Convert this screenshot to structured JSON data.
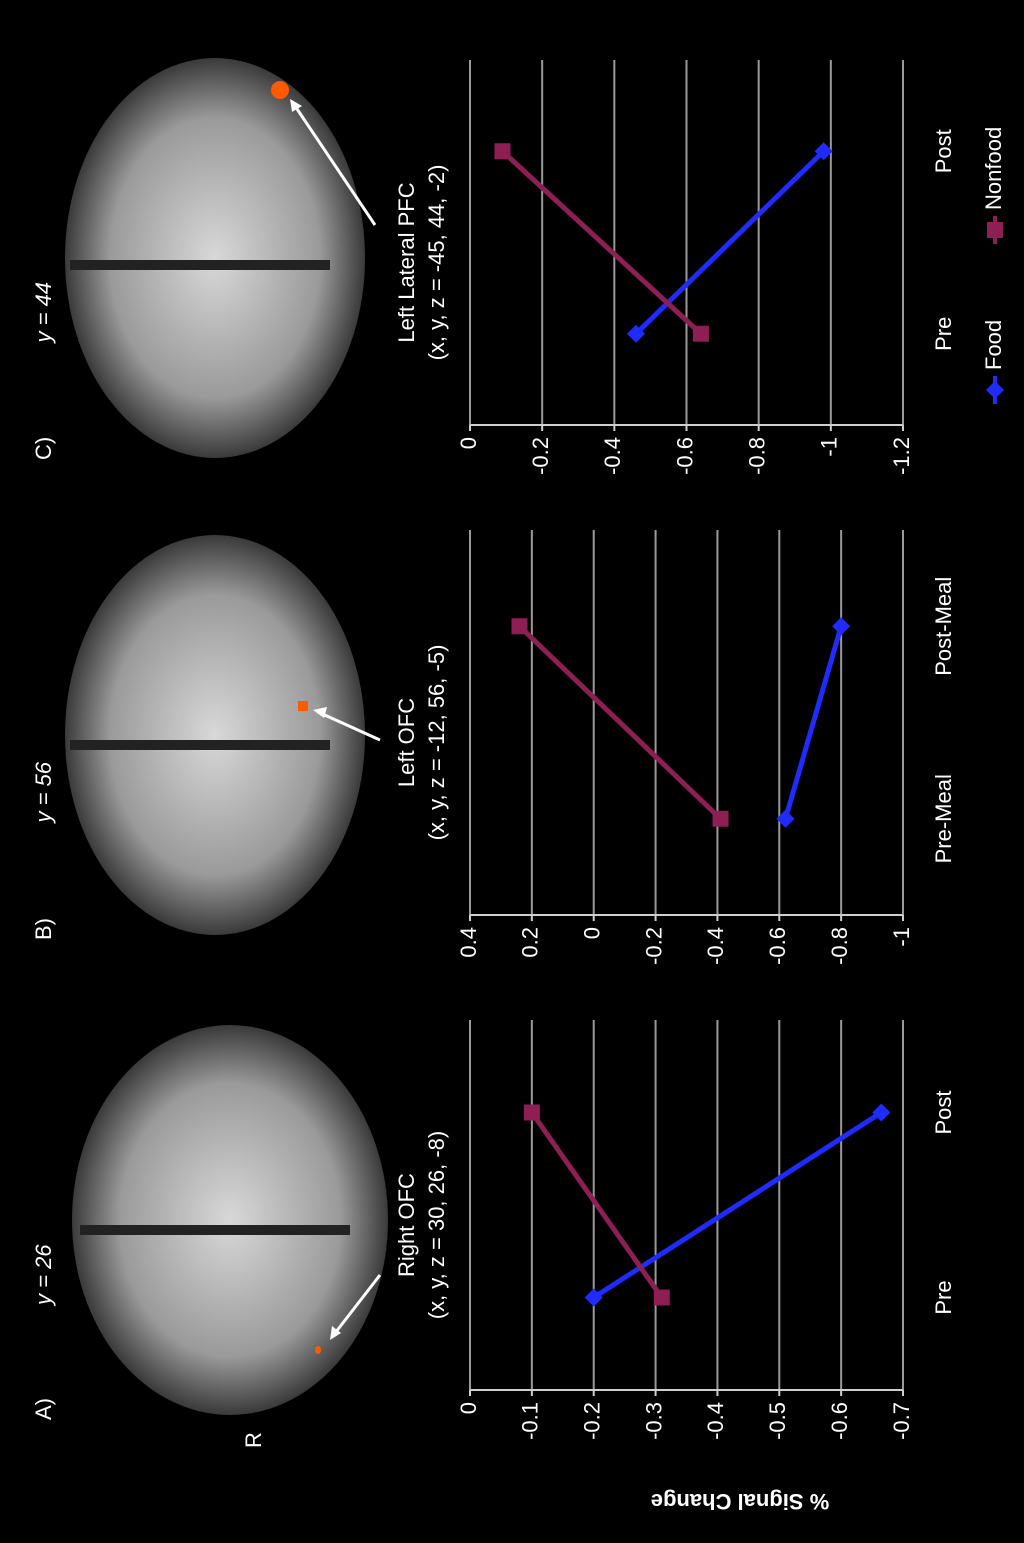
{
  "chart_data": [
    {
      "type": "line",
      "panel_label": "A)",
      "slice_label": "y = 26",
      "annotation": "R",
      "title": "Right OFC",
      "subtitle": "(x, y, z = 30, 26, -8)",
      "ylabel": "% Signal Change",
      "categories": [
        "Pre",
        "Post"
      ],
      "series": [
        {
          "name": "Food",
          "color": "#1f2bff",
          "marker": "diamond",
          "values": [
            -0.2,
            -0.665
          ]
        },
        {
          "name": "Nonfood",
          "color": "#8e1f54",
          "marker": "square",
          "values": [
            -0.31,
            -0.1
          ]
        }
      ],
      "ylim": [
        -0.7,
        0
      ],
      "yticks": [
        0,
        -0.1,
        -0.2,
        -0.3,
        -0.4,
        -0.5,
        -0.6,
        -0.7
      ],
      "grid": true
    },
    {
      "type": "line",
      "panel_label": "B)",
      "slice_label": "y = 56",
      "title": "Left OFC",
      "subtitle": "(x, y, z = -12, 56, -5)",
      "categories": [
        "Pre-Meal",
        "Post-Meal"
      ],
      "series": [
        {
          "name": "Food",
          "color": "#1f2bff",
          "marker": "diamond",
          "values": [
            -0.62,
            -0.8
          ]
        },
        {
          "name": "Nonfood",
          "color": "#8e1f54",
          "marker": "square",
          "values": [
            -0.41,
            0.24
          ]
        }
      ],
      "ylim": [
        -1,
        0.4
      ],
      "yticks": [
        0.4,
        0.2,
        0,
        -0.2,
        -0.4,
        -0.6,
        -0.8,
        -1
      ],
      "grid": true
    },
    {
      "type": "line",
      "panel_label": "C)",
      "slice_label": "y = 44",
      "title": "Left Lateral PFC",
      "subtitle": "(x, y, z = -45, 44, -2)",
      "categories": [
        "Pre",
        "Post"
      ],
      "series": [
        {
          "name": "Food",
          "color": "#1f2bff",
          "marker": "diamond",
          "values": [
            -0.46,
            -0.98
          ]
        },
        {
          "name": "Nonfood",
          "color": "#8e1f54",
          "marker": "square",
          "values": [
            -0.64,
            -0.09
          ]
        }
      ],
      "ylim": [
        -1.2,
        0
      ],
      "yticks": [
        0,
        -0.2,
        -0.4,
        -0.6,
        -0.8,
        -1,
        -1.2
      ],
      "grid": true,
      "legend": "bottom"
    }
  ]
}
